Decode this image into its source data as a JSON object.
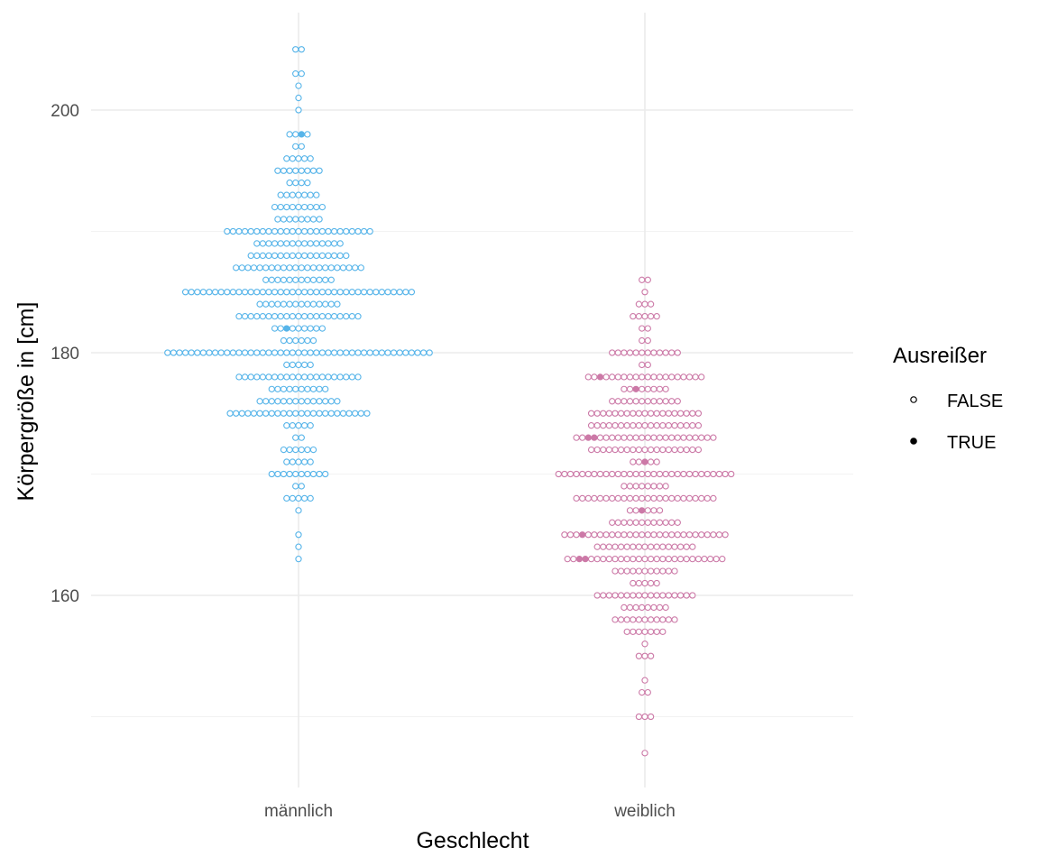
{
  "chart_data": {
    "type": "scatter",
    "subtype": "dotplot",
    "title": "",
    "xlabel": "Geschlecht",
    "ylabel": "Körpergröße in [cm]",
    "categories": [
      "männlich",
      "weiblich"
    ],
    "ylim": [
      145,
      206
    ],
    "yticks": [
      160,
      180,
      200
    ],
    "yticks_minor": [
      150,
      170,
      190
    ],
    "grid": true,
    "legend": {
      "title": "Ausreißer",
      "position": "right",
      "entries": [
        "FALSE",
        "TRUE"
      ]
    },
    "colors": {
      "männlich": "#56B4E9",
      "weiblich": "#CC79A7"
    },
    "series": [
      {
        "category": "männlich",
        "bins": [
          [
            205,
            2
          ],
          [
            203,
            2
          ],
          [
            202,
            1
          ],
          [
            201,
            1
          ],
          [
            200,
            1
          ],
          [
            198,
            4
          ],
          [
            197,
            2
          ],
          [
            196,
            5
          ],
          [
            195,
            8
          ],
          [
            194,
            4
          ],
          [
            193,
            7
          ],
          [
            192,
            9
          ],
          [
            191,
            8
          ],
          [
            190,
            25
          ],
          [
            189,
            15
          ],
          [
            188,
            17
          ],
          [
            187,
            22
          ],
          [
            186,
            12
          ],
          [
            185,
            39
          ],
          [
            184,
            14
          ],
          [
            183,
            21
          ],
          [
            182,
            9
          ],
          [
            181,
            6
          ],
          [
            180,
            45
          ],
          [
            179,
            5
          ],
          [
            178,
            21
          ],
          [
            177,
            10
          ],
          [
            176,
            14
          ],
          [
            175,
            24
          ],
          [
            174,
            5
          ],
          [
            173,
            2
          ],
          [
            172,
            6
          ],
          [
            171,
            5
          ],
          [
            170,
            10
          ],
          [
            169,
            2
          ],
          [
            168,
            5
          ],
          [
            167,
            1
          ],
          [
            165,
            1
          ],
          [
            164,
            1
          ],
          [
            163,
            1
          ]
        ],
        "outliers": [
          [
            198,
            2
          ],
          [
            182,
            2
          ],
          [
            173,
            2
          ]
        ]
      },
      {
        "category": "weiblich",
        "bins": [
          [
            186,
            2
          ],
          [
            185,
            1
          ],
          [
            184,
            3
          ],
          [
            183,
            5
          ],
          [
            182,
            2
          ],
          [
            181,
            2
          ],
          [
            180,
            12
          ],
          [
            179,
            2
          ],
          [
            178,
            20
          ],
          [
            177,
            8
          ],
          [
            176,
            12
          ],
          [
            175,
            19
          ],
          [
            174,
            19
          ],
          [
            173,
            24
          ],
          [
            172,
            19
          ],
          [
            171,
            5
          ],
          [
            170,
            30
          ],
          [
            169,
            8
          ],
          [
            168,
            24
          ],
          [
            167,
            6
          ],
          [
            166,
            12
          ],
          [
            165,
            28
          ],
          [
            164,
            17
          ],
          [
            163,
            27
          ],
          [
            162,
            11
          ],
          [
            161,
            5
          ],
          [
            160,
            17
          ],
          [
            159,
            8
          ],
          [
            158,
            11
          ],
          [
            157,
            7
          ],
          [
            156,
            1
          ],
          [
            155,
            3
          ],
          [
            153,
            1
          ],
          [
            152,
            2
          ],
          [
            150,
            3
          ],
          [
            147,
            1
          ]
        ],
        "outliers": [
          [
            178,
            2
          ],
          [
            177,
            2
          ],
          [
            173,
            2
          ],
          [
            173,
            3
          ],
          [
            171,
            2
          ],
          [
            167,
            2
          ],
          [
            165,
            3
          ],
          [
            163,
            2
          ],
          [
            163,
            3
          ]
        ]
      }
    ]
  }
}
